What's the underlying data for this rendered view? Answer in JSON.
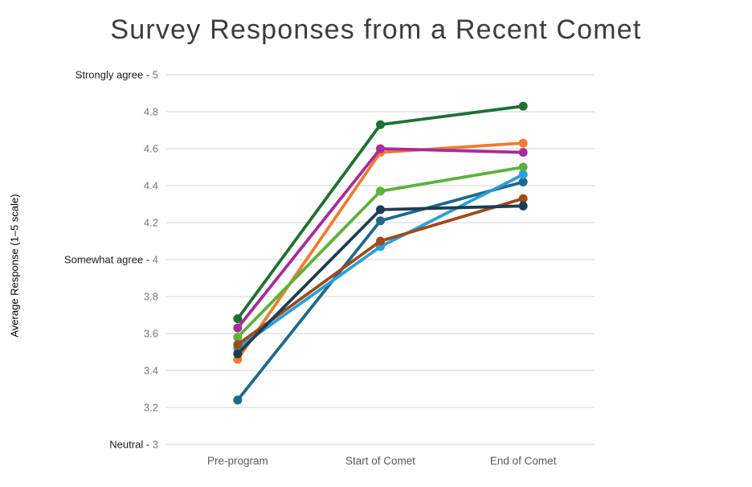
{
  "page": {
    "background": "#ffffff"
  },
  "chart_data": {
    "type": "line",
    "title": "Survey Responses from a Recent Comet",
    "ylabel": "Average Response (1–5 scale)",
    "xlabel": "",
    "categories": [
      "Pre-program",
      "Start of Comet",
      "End of Comet"
    ],
    "ylim": [
      3,
      5
    ],
    "ytick_step": 0.2,
    "named_ticks": {
      "5": "Strongly agree",
      "4": "Somewhat agree",
      "3": "Neutral"
    },
    "grid": "horizontal",
    "legend": "none",
    "series": [
      {
        "name": "series-dark-green",
        "color": "#1e7032",
        "values": [
          3.68,
          4.73,
          4.83
        ]
      },
      {
        "name": "series-orange",
        "color": "#ee7b30",
        "values": [
          3.46,
          4.58,
          4.63
        ]
      },
      {
        "name": "series-magenta",
        "color": "#a62c9c",
        "values": [
          3.63,
          4.6,
          4.58
        ]
      },
      {
        "name": "series-light-green",
        "color": "#5cb23a",
        "values": [
          3.58,
          4.37,
          4.5
        ]
      },
      {
        "name": "series-teal",
        "color": "#20688c",
        "values": [
          3.24,
          4.21,
          4.42
        ]
      },
      {
        "name": "series-cyan",
        "color": "#2b9fd6",
        "values": [
          3.52,
          4.07,
          4.46
        ]
      },
      {
        "name": "series-brown",
        "color": "#9e4a1b",
        "values": [
          3.54,
          4.1,
          4.33
        ]
      },
      {
        "name": "series-navy",
        "color": "#1c3c52",
        "values": [
          3.49,
          4.27,
          4.29
        ]
      }
    ],
    "style": {
      "title_color": "#3c3c3c",
      "tick_number_color": "#757575",
      "tick_text_color": "#1a1a1a",
      "x_label_color": "#595959",
      "gridline_color": "#e2e2e2",
      "line_width": 3.8,
      "marker_radius": 5.5
    }
  }
}
